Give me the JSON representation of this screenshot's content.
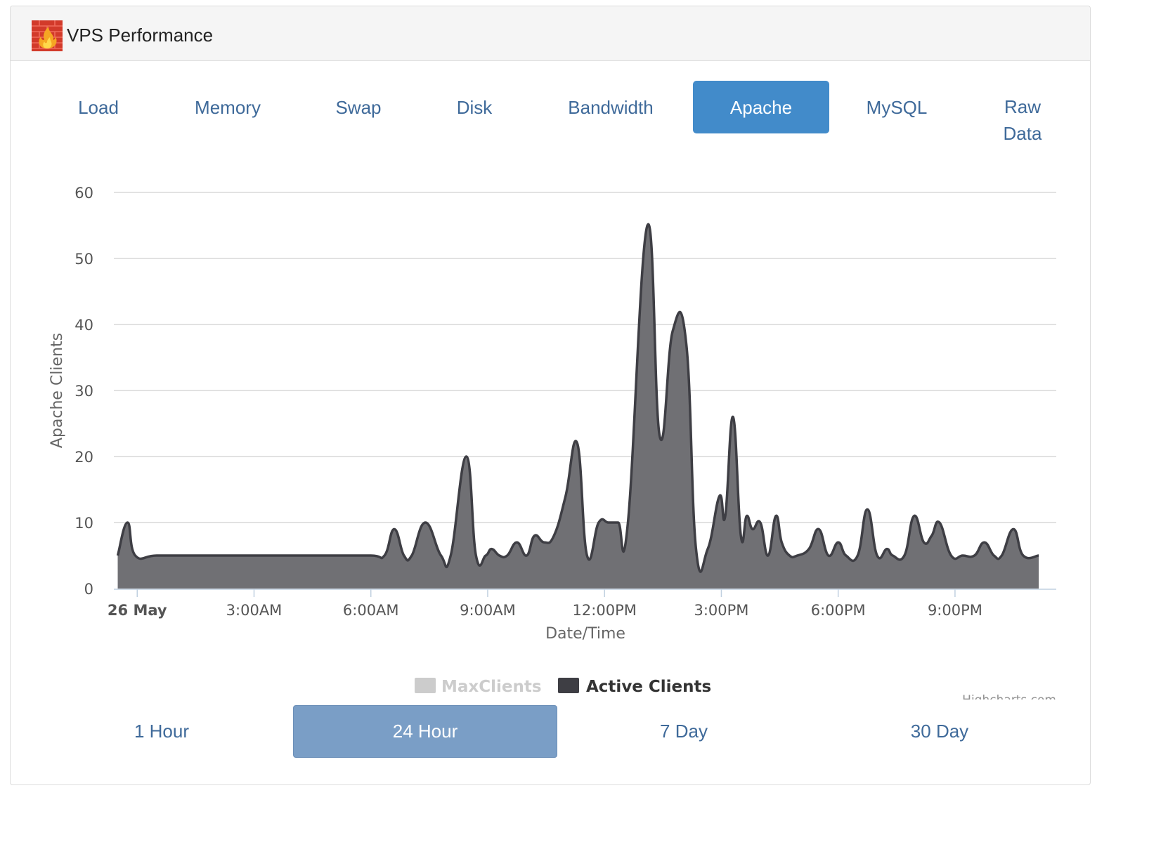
{
  "panel": {
    "title": "VPS Performance",
    "icon": "firewall-flame-icon"
  },
  "tabs": [
    {
      "label": "Load",
      "active": false
    },
    {
      "label": "Memory",
      "active": false
    },
    {
      "label": "Swap",
      "active": false
    },
    {
      "label": "Disk",
      "active": false
    },
    {
      "label": "Bandwidth",
      "active": false
    },
    {
      "label": "Apache",
      "active": true
    },
    {
      "label": "MySQL",
      "active": false
    },
    {
      "label": "Raw Data",
      "active": false
    }
  ],
  "ranges": [
    {
      "label": "1 Hour",
      "active": false
    },
    {
      "label": "24 Hour",
      "active": true
    },
    {
      "label": "7 Day",
      "active": false
    },
    {
      "label": "30 Day",
      "active": false
    }
  ],
  "credit": "Highcharts.com",
  "colors": {
    "accent": "#428bca",
    "range_active": "#7a9ec6",
    "series_fill": "#707074",
    "series_line": "#3e3e44",
    "legend_hidden": "#cccccc"
  },
  "chart_data": {
    "type": "area",
    "xlabel": "Date/Time",
    "ylabel": "Apache Clients",
    "ylim": [
      0,
      60
    ],
    "yticks": [
      0,
      10,
      20,
      30,
      40,
      50,
      60
    ],
    "xlim_hours": [
      -0.6,
      23.6
    ],
    "x_tick_labels": [
      {
        "hour": 0,
        "label": "26 May",
        "bold": true
      },
      {
        "hour": 3,
        "label": "3:00AM"
      },
      {
        "hour": 6,
        "label": "6:00AM"
      },
      {
        "hour": 9,
        "label": "9:00AM"
      },
      {
        "hour": 12,
        "label": "12:00PM"
      },
      {
        "hour": 15,
        "label": "3:00PM"
      },
      {
        "hour": 18,
        "label": "6:00PM"
      },
      {
        "hour": 21,
        "label": "9:00PM"
      }
    ],
    "grid": true,
    "legend_placement": "bottom-center",
    "series": [
      {
        "name": "MaxClients",
        "visible": false,
        "x": [],
        "y": []
      },
      {
        "name": "Active Clients",
        "visible": true,
        "x": [
          -0.5,
          -0.25,
          -0.05,
          0.5,
          1.5,
          3.0,
          4.5,
          6.0,
          6.35,
          6.6,
          6.85,
          7.05,
          7.4,
          7.8,
          8.05,
          8.45,
          8.7,
          8.95,
          9.1,
          9.3,
          9.5,
          9.75,
          10.0,
          10.2,
          10.45,
          10.7,
          11.0,
          11.3,
          11.55,
          11.85,
          12.1,
          12.35,
          12.6,
          13.1,
          13.42,
          13.75,
          14.1,
          14.35,
          14.65,
          14.95,
          15.1,
          15.3,
          15.5,
          15.65,
          15.8,
          16.0,
          16.2,
          16.4,
          16.55,
          16.75,
          16.95,
          17.25,
          17.5,
          17.75,
          18.0,
          18.2,
          18.5,
          18.75,
          19.0,
          19.25,
          19.4,
          19.7,
          19.95,
          20.2,
          20.4,
          20.6,
          20.9,
          21.2,
          21.5,
          21.75,
          22.0,
          22.2,
          22.5,
          22.75,
          23.15
        ],
        "y": [
          5,
          10,
          5,
          5,
          5,
          5,
          5,
          5,
          5,
          9,
          5,
          5,
          10,
          5,
          5,
          20,
          5,
          5,
          6,
          5,
          5,
          7,
          5,
          8,
          7,
          8,
          14,
          22,
          5,
          10,
          10,
          10,
          10,
          55,
          23,
          39,
          37,
          6,
          6,
          14,
          11,
          26,
          8,
          11,
          9,
          10,
          5,
          11,
          7,
          5,
          5,
          6,
          9,
          5,
          7,
          5,
          5,
          12,
          5,
          6,
          5,
          5,
          11,
          7,
          8,
          10,
          5,
          5,
          5,
          7,
          5,
          5,
          9,
          5,
          5
        ]
      }
    ]
  }
}
